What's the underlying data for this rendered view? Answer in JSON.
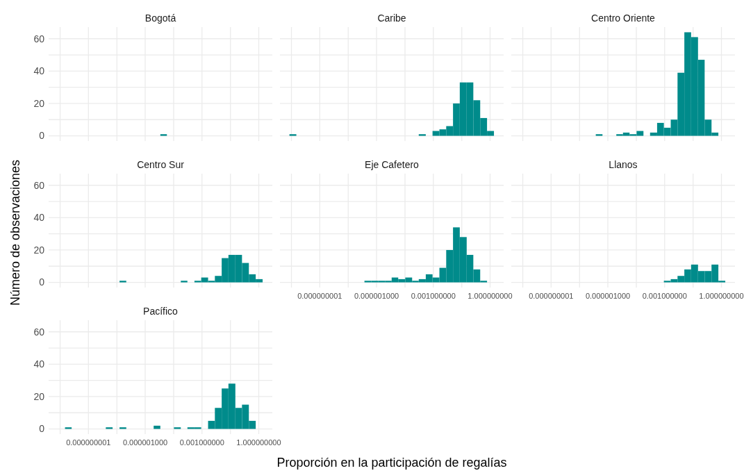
{
  "chart_data": [
    {
      "type": "histogram",
      "title": "Bogotá",
      "xlabel": "Proporción en la participación de regalías",
      "ylabel": "Número de observaciones",
      "log": "x",
      "grid": true,
      "tick_labels": "y",
      "color": "#008b8b",
      "bins": [
        6.3e-06,
        1.4e-05
      ],
      "values": [
        1
      ],
      "xlim": [
        7.9e-12,
        5.2
      ],
      "ylim": [
        -3.2,
        67.2
      ],
      "xticks": [
        {
          "value": 3.2e-11,
          "label": null
        },
        {
          "value": 1e-09,
          "label": null
        },
        {
          "value": 3.2e-08,
          "label": null
        },
        {
          "value": 1e-06,
          "label": null
        },
        {
          "value": 3.2e-05,
          "label": null
        },
        {
          "value": 0.001,
          "label": null
        },
        {
          "value": 0.032,
          "label": null
        },
        {
          "value": 1,
          "label": null
        }
      ],
      "yticks": [
        0,
        {
          "value": 10,
          "label": null
        },
        20,
        {
          "value": 30,
          "label": null
        },
        40,
        {
          "value": 50,
          "label": null
        },
        60
      ]
    },
    {
      "type": "histogram",
      "title": "Caribe",
      "log": "x",
      "grid": true,
      "tick_labels": false,
      "color": "#008b8b",
      "bins": [
        2.5e-11,
        5.8e-11,
        0.00017,
        0.0004,
        0.00091,
        0.0021,
        0.0048,
        0.011,
        0.025,
        0.058,
        0.13,
        0.3,
        0.69,
        1.6
      ],
      "values": [
        1,
        0,
        1,
        0,
        3,
        4,
        6,
        20,
        33,
        33,
        22,
        11,
        3
      ],
      "xlim": [
        7.9e-12,
        5.2
      ],
      "ylim": [
        -3.2,
        67.2
      ],
      "xticks": [
        {
          "value": 3.2e-11,
          "label": null
        },
        {
          "value": 1e-09,
          "label": null
        },
        {
          "value": 3.2e-08,
          "label": null
        },
        {
          "value": 1e-06,
          "label": null
        },
        {
          "value": 3.2e-05,
          "label": null
        },
        {
          "value": 0.001,
          "label": null
        },
        {
          "value": 0.032,
          "label": null
        },
        {
          "value": 1,
          "label": null
        }
      ],
      "yticks": [
        {
          "value": 0,
          "label": null
        },
        {
          "value": 10,
          "label": null
        },
        {
          "value": 20,
          "label": null
        },
        {
          "value": 30,
          "label": null
        },
        {
          "value": 40,
          "label": null
        },
        {
          "value": 50,
          "label": null
        },
        {
          "value": 60,
          "label": null
        }
      ]
    },
    {
      "type": "histogram",
      "title": "Centro Oriente",
      "log": "x",
      "grid": true,
      "tick_labels": false,
      "color": "#008b8b",
      "bins": [
        2.3e-07,
        5.2e-07,
        2.8e-06,
        6.3e-06,
        1.4e-05,
        3.3e-05,
        7.6e-05,
        0.00017,
        0.0004,
        0.00091,
        0.0021,
        0.0048,
        0.011,
        0.025,
        0.058,
        0.13,
        0.3,
        0.69
      ],
      "values": [
        1,
        0,
        1,
        2,
        1,
        3,
        0,
        2,
        8,
        5,
        10,
        39,
        64,
        61,
        47,
        10,
        2
      ],
      "xlim": [
        7.9e-12,
        5.2
      ],
      "ylim": [
        -3.2,
        67.2
      ],
      "xticks": [
        {
          "value": 3.2e-11,
          "label": null
        },
        {
          "value": 1e-09,
          "label": null
        },
        {
          "value": 3.2e-08,
          "label": null
        },
        {
          "value": 1e-06,
          "label": null
        },
        {
          "value": 3.2e-05,
          "label": null
        },
        {
          "value": 0.001,
          "label": null
        },
        {
          "value": 0.032,
          "label": null
        },
        {
          "value": 1,
          "label": null
        }
      ],
      "yticks": [
        {
          "value": 0,
          "label": null
        },
        {
          "value": 10,
          "label": null
        },
        {
          "value": 20,
          "label": null
        },
        {
          "value": 30,
          "label": null
        },
        {
          "value": 40,
          "label": null
        },
        {
          "value": 50,
          "label": null
        },
        {
          "value": 60,
          "label": null
        }
      ]
    },
    {
      "type": "histogram",
      "title": "Centro Sur",
      "log": "x",
      "grid": true,
      "tick_labels": "y",
      "color": "#008b8b",
      "bins": [
        4.4e-08,
        1e-07,
        7.6e-05,
        0.00017,
        0.0004,
        0.00091,
        0.0021,
        0.0048,
        0.011,
        0.025,
        0.058,
        0.13,
        0.3,
        0.69,
        1.6
      ],
      "values": [
        1,
        0,
        1,
        0,
        1,
        3,
        1,
        4,
        15,
        17,
        17,
        12,
        5,
        2
      ],
      "xlim": [
        7.9e-12,
        5.2
      ],
      "ylim": [
        -3.2,
        67.2
      ],
      "xticks": [
        {
          "value": 3.2e-11,
          "label": null
        },
        {
          "value": 1e-09,
          "label": null
        },
        {
          "value": 3.2e-08,
          "label": null
        },
        {
          "value": 1e-06,
          "label": null
        },
        {
          "value": 3.2e-05,
          "label": null
        },
        {
          "value": 0.001,
          "label": null
        },
        {
          "value": 0.032,
          "label": null
        },
        {
          "value": 1,
          "label": null
        }
      ],
      "yticks": [
        0,
        {
          "value": 10,
          "label": null
        },
        20,
        {
          "value": 30,
          "label": null
        },
        40,
        {
          "value": 50,
          "label": null
        },
        60
      ]
    },
    {
      "type": "histogram",
      "title": "Eje Cafetero",
      "log": "x",
      "grid": true,
      "tick_labels": "x",
      "color": "#008b8b",
      "bins": [
        2.3e-07,
        5.2e-07,
        1.2e-06,
        2.8e-06,
        6.3e-06,
        1.4e-05,
        3.3e-05,
        7.6e-05,
        0.00017,
        0.0004,
        0.00091,
        0.0021,
        0.0048,
        0.011,
        0.025,
        0.058,
        0.13,
        0.3,
        0.69
      ],
      "values": [
        1,
        1,
        1,
        1,
        3,
        2,
        3,
        1,
        2,
        5,
        3,
        9,
        20,
        34,
        28,
        17,
        8,
        1
      ],
      "xlim": [
        7.9e-12,
        5.2
      ],
      "ylim": [
        -3.2,
        67.2
      ],
      "xticks": [
        {
          "value": 3.2e-11,
          "label": null
        },
        {
          "value": 1e-09,
          "label": "0.000000001"
        },
        {
          "value": 3.2e-08,
          "label": null
        },
        {
          "value": 1e-06,
          "label": "0.000001000"
        },
        {
          "value": 3.2e-05,
          "label": null
        },
        {
          "value": 0.001,
          "label": "0.001000000"
        },
        {
          "value": 0.032,
          "label": null
        },
        {
          "value": 1,
          "label": "1.000000000"
        }
      ],
      "yticks": [
        {
          "value": 0,
          "label": null
        },
        {
          "value": 10,
          "label": null
        },
        {
          "value": 20,
          "label": null
        },
        {
          "value": 30,
          "label": null
        },
        {
          "value": 40,
          "label": null
        },
        {
          "value": 50,
          "label": null
        },
        {
          "value": 60,
          "label": null
        }
      ]
    },
    {
      "type": "histogram",
      "title": "Llanos",
      "log": "x",
      "grid": true,
      "tick_labels": "x",
      "color": "#008b8b",
      "bins": [
        0.00091,
        0.0021,
        0.0048,
        0.011,
        0.025,
        0.058,
        0.13,
        0.3,
        0.69,
        1.6
      ],
      "values": [
        1,
        2,
        4,
        8,
        11,
        7,
        7,
        11,
        1
      ],
      "xlim": [
        7.9e-12,
        5.2
      ],
      "ylim": [
        -3.2,
        67.2
      ],
      "xticks": [
        {
          "value": 3.2e-11,
          "label": null
        },
        {
          "value": 1e-09,
          "label": "0.000000001"
        },
        {
          "value": 3.2e-08,
          "label": null
        },
        {
          "value": 1e-06,
          "label": "0.000001000"
        },
        {
          "value": 3.2e-05,
          "label": null
        },
        {
          "value": 0.001,
          "label": "0.001000000"
        },
        {
          "value": 0.032,
          "label": null
        },
        {
          "value": 1,
          "label": "1.000000000"
        }
      ],
      "yticks": [
        {
          "value": 0,
          "label": null
        },
        {
          "value": 10,
          "label": null
        },
        {
          "value": 20,
          "label": null
        },
        {
          "value": 30,
          "label": null
        },
        {
          "value": 40,
          "label": null
        },
        {
          "value": 50,
          "label": null
        },
        {
          "value": 60,
          "label": null
        }
      ]
    },
    {
      "type": "histogram",
      "title": "Pacífico",
      "log": "x",
      "grid": true,
      "color": "#008b8b",
      "bins": [
        5.8e-11,
        1.3e-10,
        8.3e-09,
        1.9e-08,
        4.4e-08,
        1e-07,
        2.8e-06,
        6.3e-06,
        3.3e-05,
        7.6e-05,
        0.00017,
        0.0004,
        0.00091,
        0.0021,
        0.0048,
        0.011,
        0.025,
        0.058,
        0.13,
        0.3,
        0.69
      ],
      "values": [
        1,
        0,
        1,
        0,
        1,
        0,
        2,
        0,
        1,
        0,
        1,
        1,
        0,
        5,
        13,
        25,
        28,
        13,
        15,
        5
      ],
      "xlim": [
        7.9e-12,
        5.2
      ],
      "ylim": [
        -3.2,
        67.2
      ],
      "xticks": [
        {
          "value": 3.2e-11,
          "label": null
        },
        {
          "value": 1e-09,
          "label": "0.000000001"
        },
        {
          "value": 3.2e-08,
          "label": null
        },
        {
          "value": 1e-06,
          "label": "0.000001000"
        },
        {
          "value": 3.2e-05,
          "label": null
        },
        {
          "value": 0.001,
          "label": "0.001000000"
        },
        {
          "value": 0.032,
          "label": null
        },
        {
          "value": 1,
          "label": "1.000000000"
        }
      ],
      "yticks": [
        0,
        {
          "value": 10,
          "label": null
        },
        20,
        {
          "value": 30,
          "label": null
        },
        40,
        {
          "value": 50,
          "label": null
        },
        60
      ]
    }
  ]
}
